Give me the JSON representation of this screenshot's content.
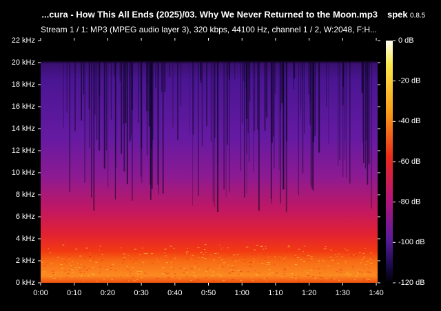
{
  "chart_data": {
    "type": "spectrogram",
    "title": "...cura - How This All Ends (2025)/03. Why We Never Returned to the Moon.mp3",
    "app_name": "spek",
    "app_version": "0.8.5",
    "subtitle": "Stream 1 / 1: MP3 (MPEG audio layer 3), 320 kbps, 44100 Hz, channel 1 / 2, W:2048, F:H...",
    "xlim": [
      0,
      100.4
    ],
    "xticks": [
      {
        "value": 0,
        "label": "0:00"
      },
      {
        "value": 10,
        "label": "0:10"
      },
      {
        "value": 20,
        "label": "0:20"
      },
      {
        "value": 30,
        "label": "0:30"
      },
      {
        "value": 40,
        "label": "0:40"
      },
      {
        "value": 50,
        "label": "0:50"
      },
      {
        "value": 60,
        "label": "1:00"
      },
      {
        "value": 70,
        "label": "1:10"
      },
      {
        "value": 80,
        "label": "1:20"
      },
      {
        "value": 90,
        "label": "1:30"
      },
      {
        "value": 100,
        "label": "1:40"
      }
    ],
    "ylim": [
      0,
      22
    ],
    "yticks": [
      {
        "value": 0,
        "label": "0 kHz"
      },
      {
        "value": 2,
        "label": "2 kHz"
      },
      {
        "value": 4,
        "label": "4 kHz"
      },
      {
        "value": 6,
        "label": "6 kHz"
      },
      {
        "value": 8,
        "label": "8 kHz"
      },
      {
        "value": 10,
        "label": "10 kHz"
      },
      {
        "value": 12,
        "label": "12 kHz"
      },
      {
        "value": 14,
        "label": "14 kHz"
      },
      {
        "value": 16,
        "label": "16 kHz"
      },
      {
        "value": 18,
        "label": "18 kHz"
      },
      {
        "value": 20,
        "label": "20 kHz"
      },
      {
        "value": 22,
        "label": "22 kHz"
      }
    ],
    "zlim": [
      -120,
      0
    ],
    "zticks": [
      {
        "value": 0,
        "label": "0 dB"
      },
      {
        "value": -20,
        "label": "-20 dB"
      },
      {
        "value": -40,
        "label": "-40 dB"
      },
      {
        "value": -60,
        "label": "-60 dB"
      },
      {
        "value": -80,
        "label": "-80 dB"
      },
      {
        "value": -100,
        "label": "-100 dB"
      },
      {
        "value": -120,
        "label": "-120 dB"
      }
    ]
  }
}
